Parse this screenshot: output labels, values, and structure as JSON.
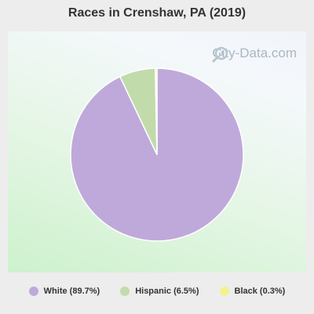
{
  "chart_data": {
    "type": "pie",
    "title": "Races in Crenshaw, PA (2019)",
    "slices": [
      {
        "label": "White (89.7%)",
        "value": 89.7,
        "color": "#bfa9da"
      },
      {
        "label": "Hispanic (6.5%)",
        "value": 6.5,
        "color": "#c2dbab"
      },
      {
        "label": "Black (0.3%)",
        "value": 0.3,
        "color": "#f4f28f"
      }
    ],
    "legend_position": "bottom"
  },
  "watermark": {
    "text": "City-Data.com",
    "icon": "magnifier-icon"
  }
}
